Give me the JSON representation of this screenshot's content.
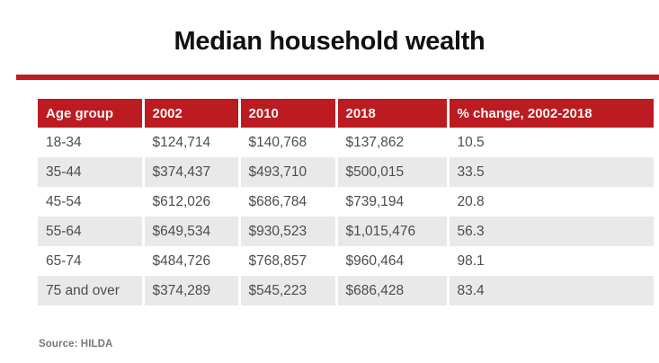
{
  "page": {
    "title": "Median household wealth",
    "source": "Source: HILDA"
  },
  "colors": {
    "header_red": "#bb1b21",
    "rule_red": "#c21b1e",
    "alt_row_gray": "#e9e9e9",
    "body_text_gray": "#4d4d4d",
    "header_text": "#faf5f4",
    "source_text_gray": "#787878",
    "title_text": "#111111"
  },
  "chart_data": {
    "type": "table",
    "title": "Median household wealth",
    "columns": [
      "Age group",
      "2002",
      "2010",
      "2018",
      "% change, 2002-2018"
    ],
    "rows": [
      [
        "18-34",
        "$124,714",
        "$140,768",
        "$137,862",
        "10.5"
      ],
      [
        "35-44",
        "$374,437",
        "$493,710",
        "$500,015",
        "33.5"
      ],
      [
        "45-54",
        "$612,026",
        "$686,784",
        "$739,194",
        "20.8"
      ],
      [
        "55-64",
        "$649,534",
        "$930,523",
        "$1,015,476",
        "56.3"
      ],
      [
        "65-74",
        "$484,726",
        "$768,857",
        "$960,464",
        "98.1"
      ],
      [
        "75 and over",
        "$374,289",
        "$545,223",
        "$686,428",
        "83.4"
      ]
    ],
    "source": "Source: HILDA",
    "layout": {
      "alternating_rows": true,
      "header_style": "red-background-white-text",
      "column_separator": "white-vertical-lines"
    }
  }
}
